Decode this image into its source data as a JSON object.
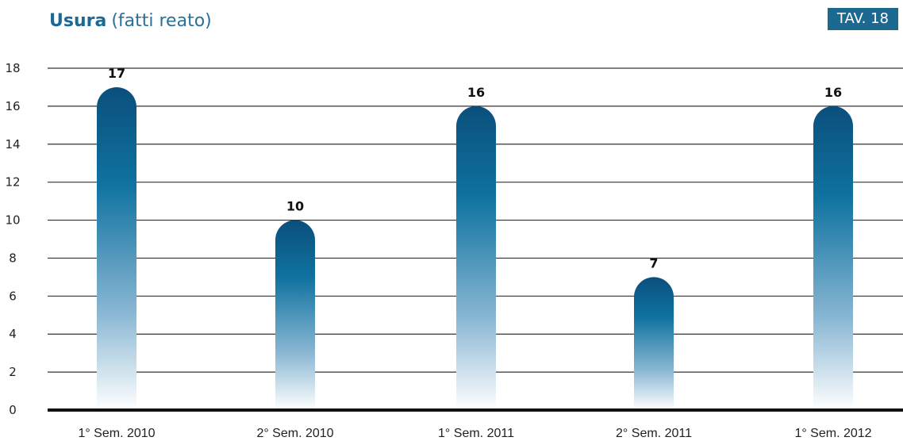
{
  "header": {
    "title": "Usura",
    "subtitle": "(fatti reato)",
    "table_badge": "TAV. 18"
  },
  "colors": {
    "bar_top": "#0b4f7c",
    "bar_mid": "#0f72a0",
    "bar_bottom": "#ffffff",
    "title": "#1a6a96",
    "badge": "#1b6891",
    "gridline": "#333333",
    "baseline": "#111111"
  },
  "chart_data": {
    "type": "bar",
    "title": "Usura (fatti reato)",
    "xlabel": "",
    "ylabel": "",
    "categories": [
      "1° Sem. 2010",
      "2° Sem. 2010",
      "1° Sem. 2011",
      "2° Sem. 2011",
      "1° Sem. 2012"
    ],
    "values": [
      17,
      10,
      16,
      7,
      16
    ],
    "data_labels": [
      "17",
      "10",
      "16",
      "7",
      "16"
    ],
    "ylim": [
      0,
      18
    ],
    "yticks": [
      0,
      2,
      4,
      6,
      8,
      10,
      12,
      14,
      16,
      18
    ],
    "grid": true,
    "legend": "none"
  }
}
